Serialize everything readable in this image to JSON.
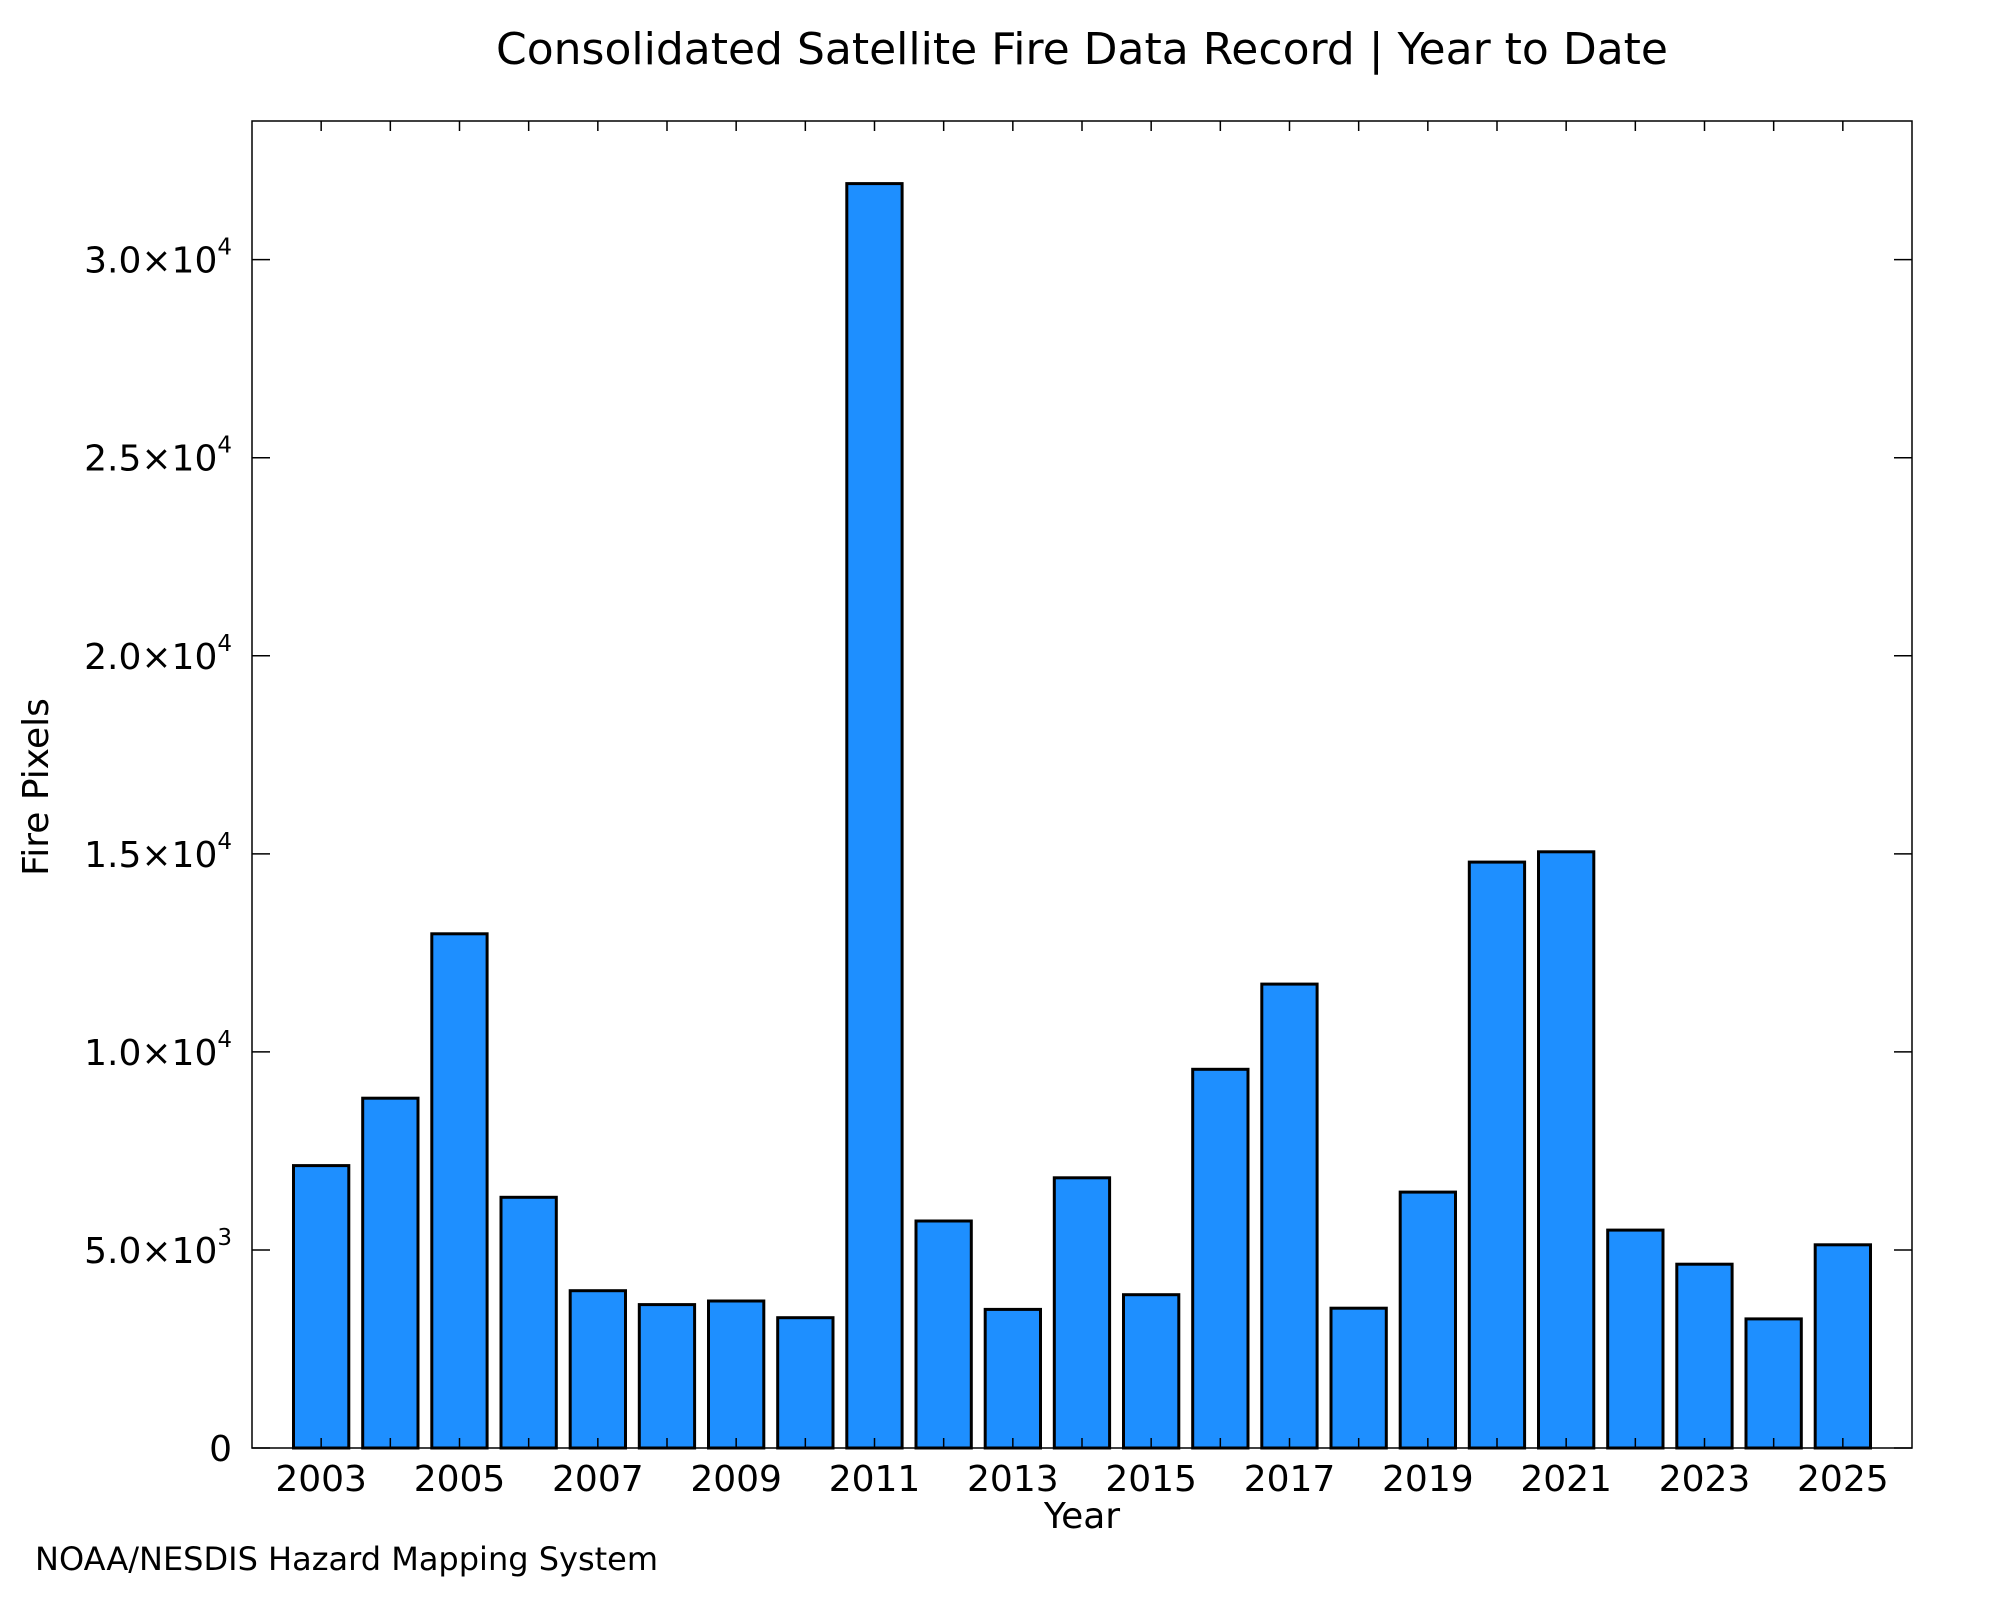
{
  "chart_data": {
    "type": "bar",
    "title": "Consolidated Satellite Fire Data Record | Year to Date",
    "xlabel": "Year",
    "ylabel": "Fire Pixels",
    "categories": [
      2003,
      2004,
      2005,
      2006,
      2007,
      2008,
      2009,
      2010,
      2011,
      2012,
      2013,
      2014,
      2015,
      2016,
      2017,
      2018,
      2019,
      2020,
      2021,
      2022,
      2023,
      2024,
      2025
    ],
    "values": [
      7130,
      8830,
      12980,
      6330,
      3970,
      3620,
      3710,
      3290,
      31920,
      5730,
      3500,
      6820,
      3870,
      9560,
      11710,
      3530,
      6460,
      14790,
      15050,
      5500,
      4640,
      3260,
      5130
    ],
    "x_tick_labels": [
      "2003",
      "2005",
      "2007",
      "2009",
      "2011",
      "2013",
      "2015",
      "2017",
      "2019",
      "2021",
      "2023",
      "2025"
    ],
    "y_ticks": [
      {
        "value": 0,
        "mantissa": "0",
        "exp": ""
      },
      {
        "value": 5000,
        "mantissa": "5.0×10",
        "exp": "3"
      },
      {
        "value": 10000,
        "mantissa": "1.0×10",
        "exp": "4"
      },
      {
        "value": 15000,
        "mantissa": "1.5×10",
        "exp": "4"
      },
      {
        "value": 20000,
        "mantissa": "2.0×10",
        "exp": "4"
      },
      {
        "value": 25000,
        "mantissa": "2.5×10",
        "exp": "4"
      },
      {
        "value": 30000,
        "mantissa": "3.0×10",
        "exp": "4"
      }
    ],
    "ylim": [
      0,
      33500
    ],
    "xlim": [
      2002,
      2026
    ],
    "bar_color": "#1E8FFF",
    "bar_edge_color": "#000000",
    "grid": false,
    "legend": "none"
  },
  "credit": "NOAA/NESDIS Hazard Mapping System",
  "credit_color": "#808080"
}
